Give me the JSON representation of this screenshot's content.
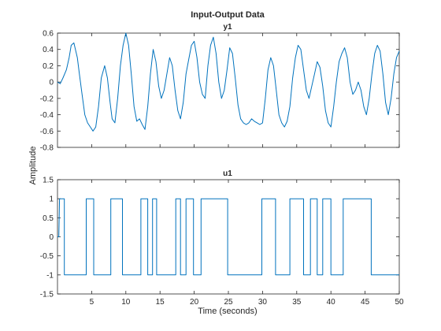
{
  "figure": {
    "title": "Input-Output Data",
    "xlabel": "Time (seconds)",
    "ylabel": "Amplitude"
  },
  "chart_data": [
    {
      "type": "line",
      "title": "y1",
      "xlim": [
        0,
        50
      ],
      "ylim": [
        -0.8,
        0.6
      ],
      "xticks": [
        5,
        10,
        15,
        20,
        25,
        30,
        35,
        40,
        45,
        50
      ],
      "show_xtick_labels": false,
      "yticks": [
        -0.8,
        -0.6,
        -0.4,
        -0.2,
        0,
        0.2,
        0.4,
        0.6
      ],
      "ytick_labels": [
        "-0.8",
        "-0.6",
        "-0.4",
        "-0.2",
        "0",
        "0.2",
        "0.4",
        "0.6"
      ],
      "line_color": "#0072bd",
      "grid": false,
      "series": [
        {
          "x": [
            0.0,
            0.4,
            0.8,
            1.3,
            1.7,
            2.0,
            2.4,
            2.9,
            3.2,
            3.6,
            4.0,
            4.4,
            4.8,
            5.2,
            5.6,
            6.0,
            6.4,
            6.9,
            7.3,
            7.7,
            8.0,
            8.4,
            8.8,
            9.2,
            9.6,
            10.0,
            10.4,
            10.8,
            11.2,
            11.6,
            12.0,
            12.4,
            12.8,
            13.2,
            13.6,
            14.0,
            14.4,
            14.8,
            15.2,
            15.6,
            16.0,
            16.4,
            16.8,
            17.2,
            17.6,
            18.0,
            18.4,
            18.8,
            19.2,
            19.6,
            20.0,
            20.4,
            20.8,
            21.2,
            21.6,
            22.0,
            22.4,
            22.8,
            23.2,
            23.6,
            24.0,
            24.4,
            24.8,
            25.2,
            25.6,
            26.0,
            26.4,
            26.8,
            27.2,
            27.6,
            28.0,
            28.4,
            28.8,
            29.2,
            29.6,
            30.0,
            30.4,
            30.8,
            31.2,
            31.6,
            32.0,
            32.4,
            32.8,
            33.2,
            33.6,
            34.0,
            34.4,
            34.8,
            35.2,
            35.6,
            36.0,
            36.4,
            36.8,
            37.2,
            37.6,
            38.0,
            38.4,
            38.8,
            39.2,
            39.6,
            40.0,
            40.4,
            40.8,
            41.2,
            41.6,
            42.0,
            42.4,
            42.8,
            43.2,
            43.6,
            44.0,
            44.4,
            44.8,
            45.2,
            45.6,
            46.0,
            46.4,
            46.8,
            47.2,
            47.6,
            48.0,
            48.4,
            48.8,
            49.2,
            49.6,
            50.0
          ],
          "y": [
            0.0,
            -0.02,
            0.05,
            0.15,
            0.3,
            0.45,
            0.48,
            0.3,
            0.1,
            -0.15,
            -0.4,
            -0.5,
            -0.55,
            -0.6,
            -0.55,
            -0.3,
            0.05,
            0.2,
            0.05,
            -0.25,
            -0.45,
            -0.5,
            -0.2,
            0.2,
            0.45,
            0.6,
            0.45,
            0.1,
            -0.3,
            -0.48,
            -0.45,
            -0.52,
            -0.58,
            -0.3,
            0.1,
            0.4,
            0.25,
            -0.05,
            -0.2,
            -0.1,
            0.1,
            0.3,
            0.2,
            -0.1,
            -0.35,
            -0.45,
            -0.25,
            0.1,
            0.28,
            0.45,
            0.5,
            0.3,
            0.0,
            -0.15,
            -0.2,
            0.2,
            0.45,
            0.55,
            0.35,
            0.0,
            -0.2,
            -0.1,
            0.15,
            0.42,
            0.35,
            0.05,
            -0.28,
            -0.45,
            -0.5,
            -0.52,
            -0.5,
            -0.45,
            -0.48,
            -0.5,
            -0.52,
            -0.5,
            -0.2,
            0.15,
            0.3,
            0.2,
            -0.1,
            -0.4,
            -0.5,
            -0.55,
            -0.48,
            -0.3,
            0.05,
            0.3,
            0.45,
            0.4,
            0.15,
            -0.1,
            -0.2,
            -0.05,
            0.1,
            0.25,
            0.18,
            -0.05,
            -0.35,
            -0.5,
            -0.55,
            -0.3,
            0.0,
            0.25,
            0.35,
            0.42,
            0.3,
            0.0,
            -0.15,
            -0.1,
            0.0,
            -0.1,
            -0.3,
            -0.4,
            -0.2,
            0.1,
            0.35,
            0.45,
            0.38,
            0.1,
            -0.25,
            -0.4,
            -0.2,
            0.1,
            0.3,
            0.38
          ]
        }
      ]
    },
    {
      "type": "line",
      "title": "u1",
      "xlim": [
        0,
        50
      ],
      "ylim": [
        -1.5,
        1.5
      ],
      "xticks": [
        5,
        10,
        15,
        20,
        25,
        30,
        35,
        40,
        45,
        50
      ],
      "xtick_labels": [
        "5",
        "10",
        "15",
        "20",
        "25",
        "30",
        "35",
        "40",
        "45",
        "50"
      ],
      "show_xtick_labels": true,
      "yticks": [
        -1.5,
        -1,
        -0.5,
        0,
        0.5,
        1,
        1.5
      ],
      "ytick_labels": [
        "-1.5",
        "-1",
        "-0.5",
        "0",
        "0.5",
        "1",
        "1.5"
      ],
      "line_color": "#0072bd",
      "grid": false,
      "series": [
        {
          "x": [
            0.0,
            0.2,
            0.3,
            1.0,
            1.0,
            4.2,
            4.2,
            5.3,
            5.3,
            7.8,
            7.8,
            9.5,
            9.5,
            12.2,
            12.2,
            13.2,
            13.2,
            13.9,
            13.9,
            14.5,
            14.5,
            17.3,
            17.3,
            18.0,
            18.0,
            18.8,
            18.8,
            19.9,
            19.9,
            21.0,
            21.0,
            24.9,
            24.9,
            29.9,
            29.9,
            31.9,
            31.9,
            34.0,
            34.0,
            36.0,
            36.0,
            37.0,
            37.0,
            38.0,
            38.0,
            38.8,
            38.8,
            40.0,
            40.0,
            41.8,
            41.8,
            45.9,
            45.9,
            50.0
          ],
          "y": [
            0.0,
            0.0,
            1.0,
            1.0,
            -1.0,
            -1.0,
            1.0,
            1.0,
            -1.0,
            -1.0,
            1.0,
            1.0,
            -1.0,
            -1.0,
            1.0,
            1.0,
            -1.0,
            -1.0,
            1.0,
            1.0,
            -1.0,
            -1.0,
            1.0,
            1.0,
            -1.0,
            -1.0,
            1.0,
            1.0,
            -1.0,
            -1.0,
            1.0,
            1.0,
            -1.0,
            -1.0,
            1.0,
            1.0,
            -1.0,
            -1.0,
            1.0,
            1.0,
            -1.0,
            -1.0,
            1.0,
            1.0,
            -1.0,
            -1.0,
            1.0,
            1.0,
            -1.0,
            -1.0,
            1.0,
            1.0,
            -1.0,
            -1.0
          ]
        }
      ]
    }
  ]
}
